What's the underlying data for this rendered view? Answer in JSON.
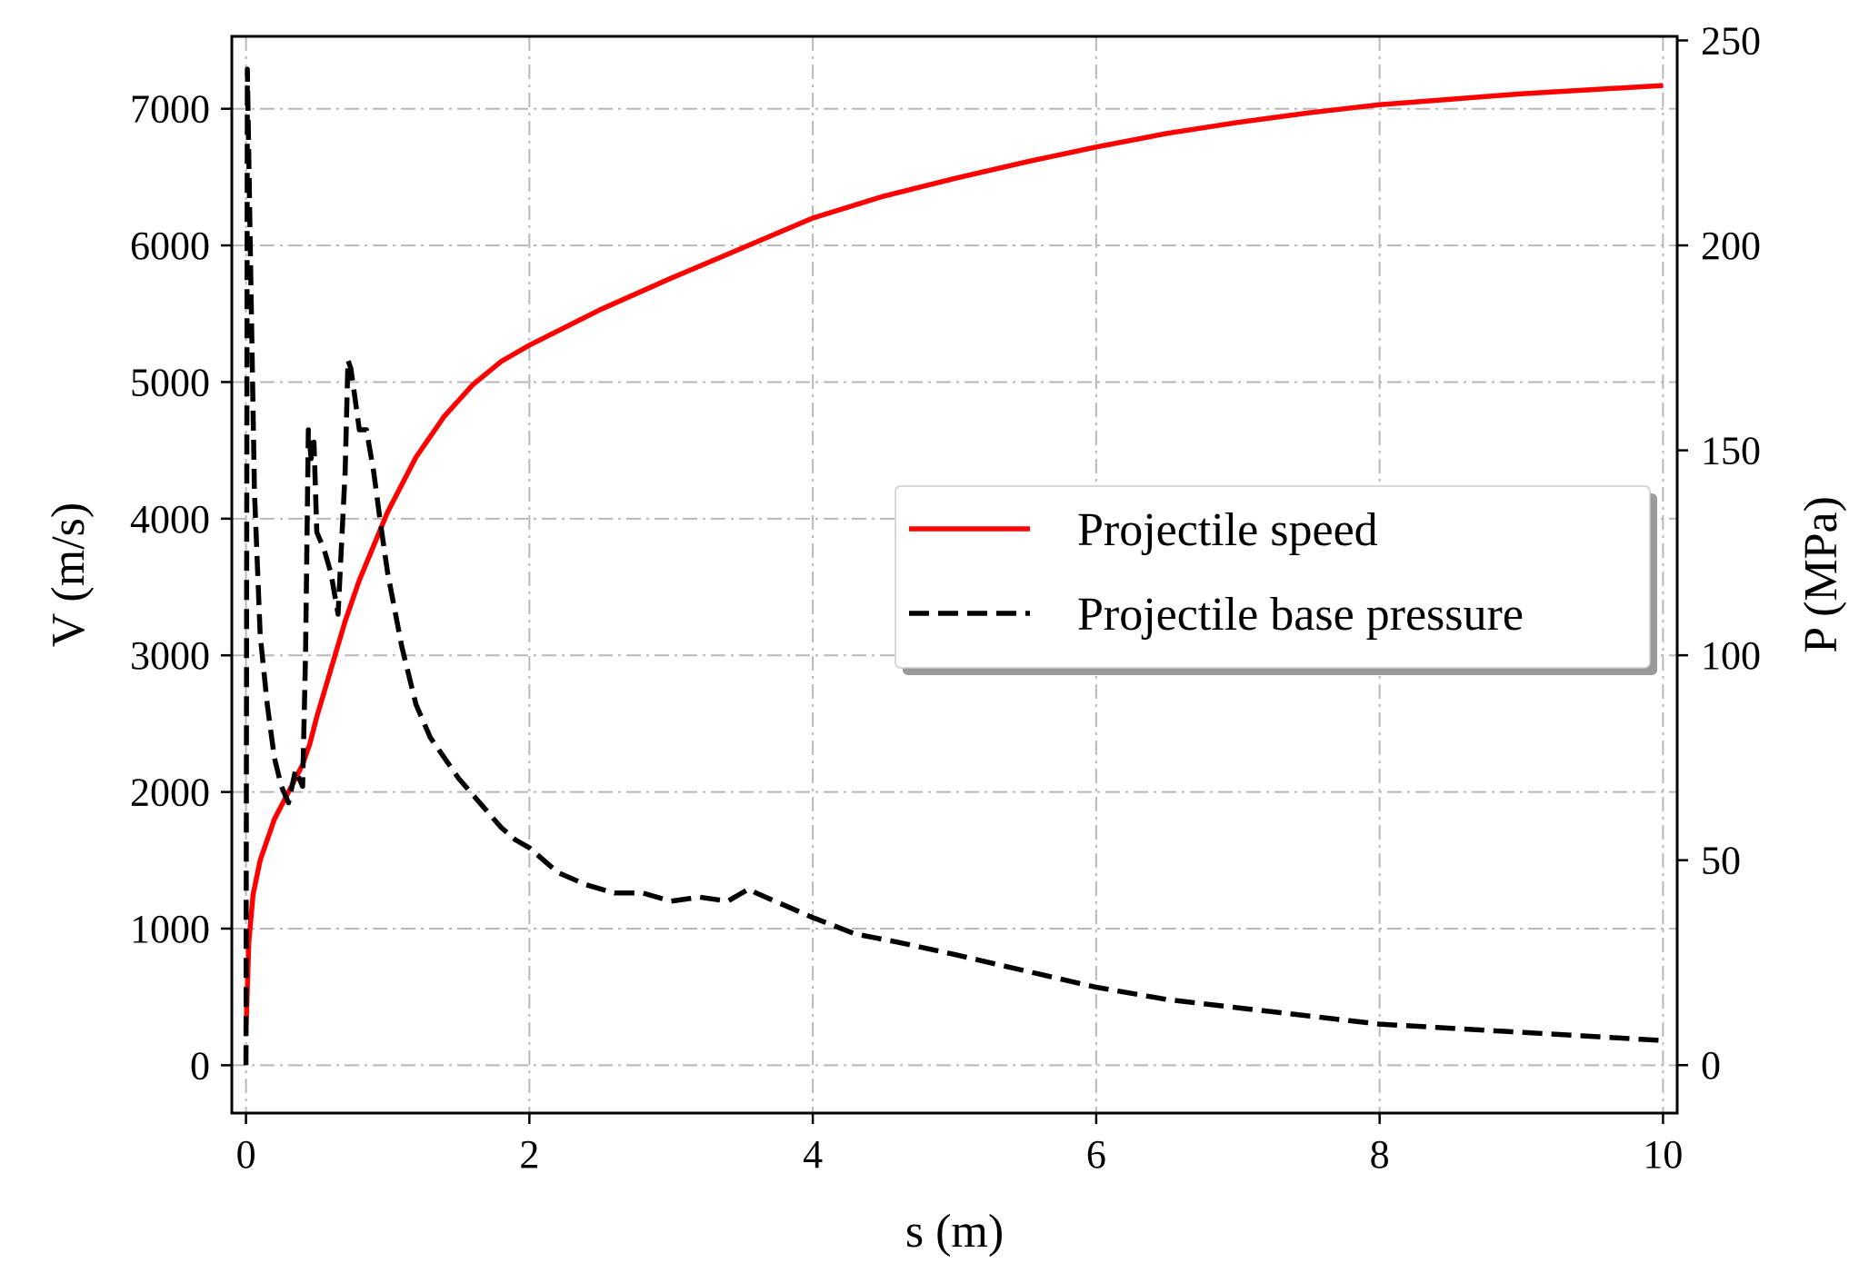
{
  "chart_data": {
    "type": "line",
    "xlabel": "s (m)",
    "ylabel_left": "V (m/s)",
    "ylabel_right": "P (MPa)",
    "xlim": [
      -0.1,
      10.1
    ],
    "ylim_left": [
      -350,
      7530
    ],
    "ylim_right": [
      -11.7,
      251
    ],
    "xticks": [
      0,
      2,
      4,
      6,
      8,
      10
    ],
    "yticks_left": [
      0,
      1000,
      2000,
      3000,
      4000,
      5000,
      6000,
      7000
    ],
    "yticks_right": [
      0,
      50,
      100,
      150,
      200,
      250
    ],
    "grid": true,
    "legend_position": "center-right",
    "series": [
      {
        "name": "Projectile speed",
        "axis": "left",
        "color": "#ff0000",
        "style": "solid",
        "x": [
          0,
          0.02,
          0.05,
          0.1,
          0.2,
          0.3,
          0.4,
          0.45,
          0.5,
          0.6,
          0.7,
          0.8,
          0.9,
          1.0,
          1.2,
          1.4,
          1.6,
          1.8,
          2.0,
          2.5,
          3.0,
          3.5,
          4.0,
          4.5,
          5.0,
          5.5,
          6.0,
          6.5,
          7.0,
          7.5,
          8.0,
          8.5,
          9.0,
          9.5,
          10.0
        ],
        "y": [
          250,
          900,
          1250,
          1500,
          1800,
          2000,
          2200,
          2350,
          2550,
          2900,
          3250,
          3550,
          3800,
          4050,
          4450,
          4750,
          4980,
          5150,
          5270,
          5530,
          5760,
          5980,
          6200,
          6360,
          6490,
          6610,
          6720,
          6820,
          6900,
          6970,
          7030,
          7070,
          7110,
          7140,
          7170
        ]
      },
      {
        "name": "Projectile base pressure",
        "axis": "right",
        "color": "#000000",
        "style": "dashed",
        "x": [
          0,
          0.01,
          0.03,
          0.06,
          0.1,
          0.15,
          0.2,
          0.25,
          0.3,
          0.35,
          0.4,
          0.42,
          0.44,
          0.46,
          0.48,
          0.5,
          0.55,
          0.6,
          0.65,
          0.7,
          0.72,
          0.74,
          0.76,
          0.8,
          0.85,
          0.9,
          0.95,
          1.0,
          1.1,
          1.2,
          1.3,
          1.4,
          1.5,
          1.6,
          1.7,
          1.8,
          1.9,
          2.0,
          2.2,
          2.4,
          2.6,
          2.8,
          3.0,
          3.2,
          3.4,
          3.5,
          3.55,
          3.6,
          3.8,
          4.0,
          4.3,
          4.6,
          5.0,
          5.5,
          6.0,
          6.5,
          7.0,
          7.5,
          8.0,
          8.5,
          9.0,
          9.5,
          10.0
        ],
        "y": [
          0,
          243,
          200,
          140,
          105,
          88,
          75,
          68,
          64,
          72,
          68,
          100,
          155,
          148,
          152,
          130,
          126,
          120,
          110,
          145,
          172,
          170,
          165,
          155,
          155,
          145,
          132,
          120,
          102,
          88,
          80,
          75,
          70,
          66,
          62,
          58,
          55,
          53,
          47,
          44,
          42,
          42,
          40,
          41,
          40,
          42,
          43,
          42,
          39,
          36,
          32,
          30,
          27,
          23,
          19,
          16,
          14,
          12,
          10,
          9,
          8,
          7,
          6
        ]
      }
    ]
  }
}
